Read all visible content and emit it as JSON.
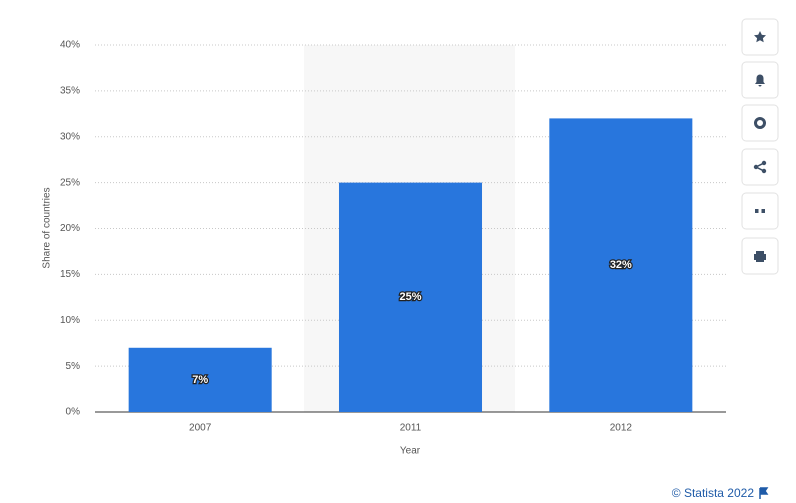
{
  "chart_data": {
    "type": "bar",
    "categories": [
      "2007",
      "2011",
      "2012"
    ],
    "values": [
      7,
      25,
      32
    ],
    "value_labels": [
      "7%",
      "25%",
      "32%"
    ],
    "color": "#2876dd",
    "x_label": "Year",
    "y_label": "Share of countries",
    "ylim": [
      0,
      40
    ],
    "yticks": [
      {
        "value": 0,
        "label": "0%"
      },
      {
        "value": 5,
        "label": "5%"
      },
      {
        "value": 10,
        "label": "10%"
      },
      {
        "value": 15,
        "label": "15%"
      },
      {
        "value": 20,
        "label": "20%"
      },
      {
        "value": 25,
        "label": "25%"
      },
      {
        "value": 30,
        "label": "30%"
      },
      {
        "value": 35,
        "label": "35%"
      },
      {
        "value": 40,
        "label": "40%"
      }
    ],
    "grid": true
  },
  "credit": "© Statista 2022"
}
